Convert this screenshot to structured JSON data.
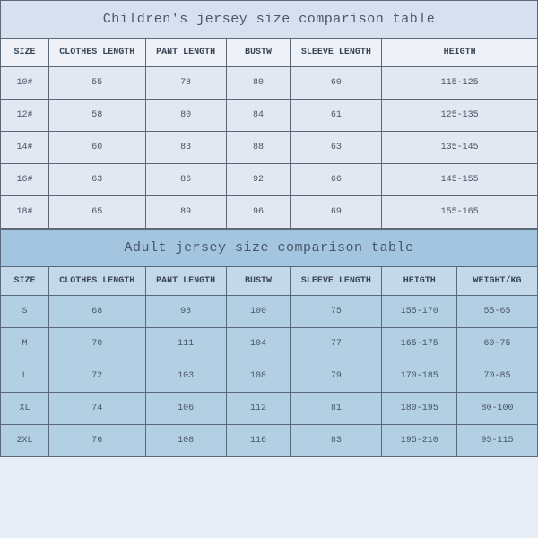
{
  "children_table": {
    "type": "table",
    "title": "Children's jersey size comparison table",
    "title_bg": "#d8e0ef",
    "header_bg": "#eef1f7",
    "row_bg": "#e2e7f1",
    "border_color": "#5a6a7a",
    "text_color": "#4a5568",
    "font_family": "Courier New",
    "title_fontsize": 15,
    "header_fontsize": 10,
    "data_fontsize": 10,
    "columns": [
      "SIZE",
      "CLOTHES LENGTH",
      "PANT LENGTH",
      "BUSTW",
      "SLEEVE LENGTH",
      "HEIGTH"
    ],
    "column_widths_pct": [
      9,
      18,
      15,
      12,
      17,
      29
    ],
    "rows": [
      [
        "10#",
        "55",
        "78",
        "80",
        "60",
        "115-125"
      ],
      [
        "12#",
        "58",
        "80",
        "84",
        "61",
        "125-135"
      ],
      [
        "14#",
        "60",
        "83",
        "88",
        "63",
        "135-145"
      ],
      [
        "16#",
        "63",
        "86",
        "92",
        "66",
        "145-155"
      ],
      [
        "18#",
        "65",
        "89",
        "96",
        "69",
        "155-165"
      ]
    ]
  },
  "adult_table": {
    "type": "table",
    "title": "Adult jersey size comparison table",
    "title_bg": "#a3c5e0",
    "header_bg": "#c3d9ea",
    "row_bg": "#b3cfe4",
    "border_color": "#5a6a7a",
    "text_color": "#4a5568",
    "font_family": "Courier New",
    "title_fontsize": 15,
    "header_fontsize": 10,
    "data_fontsize": 10,
    "columns": [
      "SIZE",
      "CLOTHES LENGTH",
      "PANT LENGTH",
      "BUSTW",
      "SLEEVE LENGTH",
      "HEIGTH",
      "WEIGHT/KG"
    ],
    "column_widths_pct": [
      9,
      18,
      15,
      12,
      17,
      14,
      15
    ],
    "rows": [
      [
        "S",
        "68",
        "98",
        "100",
        "75",
        "155-170",
        "55-65"
      ],
      [
        "M",
        "70",
        "111",
        "104",
        "77",
        "165-175",
        "60-75"
      ],
      [
        "L",
        "72",
        "103",
        "108",
        "79",
        "170-185",
        "70-85"
      ],
      [
        "XL",
        "74",
        "106",
        "112",
        "81",
        "180-195",
        "80-100"
      ],
      [
        "2XL",
        "76",
        "108",
        "116",
        "83",
        "195-210",
        "95-115"
      ]
    ]
  }
}
